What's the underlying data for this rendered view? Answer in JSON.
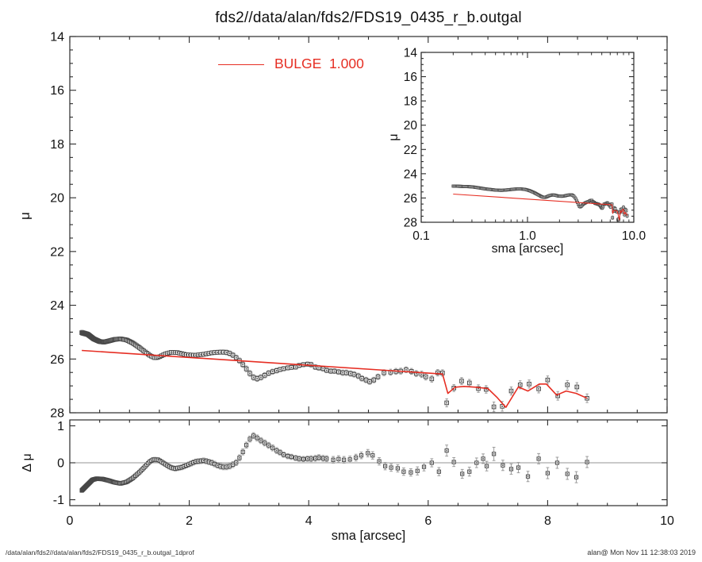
{
  "title": "fds2//data/alan/fds2/FDS19_0435_r_b.outgal",
  "legend": {
    "label": "BULGE  1.000",
    "color": "#e62e23"
  },
  "footer": {
    "left": "/data/alan/fds2//data/alan/fds2/FDS19_0435_r_b.outgal_1dprof",
    "right": "alan@  Mon Nov 11 12:38:03 2019"
  },
  "colors": {
    "model": "#e62e23",
    "marker": "#474747",
    "error_bar": "#9c9c9c",
    "frame": "#2b2b2b",
    "zero_line": "#949494",
    "text": "#111111",
    "background": "#ffffff"
  },
  "chart_data": [
    {
      "id": "main-profile",
      "type": "scatter",
      "xlabel": "sma [arcsec]",
      "ylabel": "μ",
      "xlim": [
        0,
        10
      ],
      "ylim": [
        28,
        14
      ],
      "x_major": 2,
      "x_minor": 0.5,
      "y_major": 2,
      "y_minor": 0.5,
      "grid": false,
      "legend_position": "top-inside",
      "model_label": "BULGE  1.000",
      "dense_profile": {
        "r_start": 0.2,
        "growth": 1.02,
        "n": 145,
        "mu_anchors": [
          [
            0.2,
            25.02
          ],
          [
            0.3,
            25.08
          ],
          [
            0.4,
            25.25
          ],
          [
            0.5,
            25.35
          ],
          [
            0.57,
            25.37
          ],
          [
            0.65,
            25.33
          ],
          [
            0.75,
            25.27
          ],
          [
            0.85,
            25.25
          ],
          [
            0.95,
            25.29
          ],
          [
            1.05,
            25.4
          ],
          [
            1.15,
            25.55
          ],
          [
            1.25,
            25.72
          ],
          [
            1.35,
            25.88
          ],
          [
            1.43,
            25.96
          ],
          [
            1.5,
            25.92
          ],
          [
            1.6,
            25.81
          ],
          [
            1.7,
            25.75
          ],
          [
            1.8,
            25.76
          ],
          [
            1.95,
            25.84
          ],
          [
            2.1,
            25.86
          ],
          [
            2.25,
            25.82
          ],
          [
            2.4,
            25.76
          ],
          [
            2.55,
            25.74
          ],
          [
            2.65,
            25.76
          ],
          [
            2.75,
            25.88
          ],
          [
            2.85,
            26.08
          ],
          [
            2.95,
            26.35
          ],
          [
            3.03,
            26.58
          ],
          [
            3.1,
            26.74
          ],
          [
            3.17,
            26.72
          ],
          [
            3.25,
            26.62
          ],
          [
            3.35,
            26.5
          ],
          [
            3.46,
            26.43
          ]
        ],
        "err_anchors": [
          [
            0.2,
            0.09
          ],
          [
            0.6,
            0.07
          ],
          [
            1.0,
            0.06
          ],
          [
            1.5,
            0.06
          ],
          [
            2.0,
            0.07
          ],
          [
            2.5,
            0.08
          ],
          [
            3.0,
            0.11
          ],
          [
            3.46,
            0.09
          ]
        ]
      },
      "sparse_points": [
        [
          3.52,
          26.39,
          0.08
        ],
        [
          3.58,
          26.36,
          0.08
        ],
        [
          3.65,
          26.33,
          0.08
        ],
        [
          3.71,
          26.31,
          0.08
        ],
        [
          3.78,
          26.3,
          0.08
        ],
        [
          3.84,
          26.24,
          0.08
        ],
        [
          3.91,
          26.21,
          0.08
        ],
        [
          3.98,
          26.19,
          0.08
        ],
        [
          4.04,
          26.21,
          0.09
        ],
        [
          4.11,
          26.3,
          0.09
        ],
        [
          4.17,
          26.33,
          0.09
        ],
        [
          4.24,
          26.36,
          0.09
        ],
        [
          4.3,
          26.42,
          0.09
        ],
        [
          4.37,
          26.45,
          0.09
        ],
        [
          4.43,
          26.45,
          0.09
        ],
        [
          4.5,
          26.48,
          0.09
        ],
        [
          4.57,
          26.51,
          0.1
        ],
        [
          4.63,
          26.51,
          0.1
        ],
        [
          4.7,
          26.54,
          0.1
        ],
        [
          4.76,
          26.57,
          0.1
        ],
        [
          4.83,
          26.63,
          0.1
        ],
        [
          4.89,
          26.72,
          0.1
        ],
        [
          4.96,
          26.78,
          0.1
        ],
        [
          5.02,
          26.84,
          0.1
        ],
        [
          5.09,
          26.78,
          0.1
        ],
        [
          5.16,
          26.66,
          0.1
        ],
        [
          5.26,
          26.51,
          0.11
        ],
        [
          5.37,
          26.49,
          0.11
        ],
        [
          5.46,
          26.46,
          0.11
        ],
        [
          5.54,
          26.45,
          0.11
        ],
        [
          5.63,
          26.4,
          0.11
        ],
        [
          5.72,
          26.46,
          0.11
        ],
        [
          5.8,
          26.54,
          0.11
        ],
        [
          5.89,
          26.57,
          0.12
        ],
        [
          5.96,
          26.66,
          0.12
        ],
        [
          6.06,
          26.74,
          0.12
        ],
        [
          6.16,
          26.51,
          0.12
        ],
        [
          6.24,
          26.52,
          0.12
        ],
        [
          6.31,
          27.63,
          0.15
        ],
        [
          6.43,
          27.08,
          0.13
        ],
        [
          6.56,
          26.82,
          0.13
        ],
        [
          6.69,
          26.89,
          0.13
        ],
        [
          6.84,
          27.1,
          0.14
        ],
        [
          6.97,
          27.13,
          0.14
        ],
        [
          7.1,
          27.78,
          0.18
        ],
        [
          7.24,
          27.76,
          0.18
        ],
        [
          7.39,
          27.19,
          0.15
        ],
        [
          7.54,
          26.96,
          0.15
        ],
        [
          7.69,
          26.93,
          0.15
        ],
        [
          7.85,
          27.11,
          0.15
        ],
        [
          8.0,
          26.78,
          0.15
        ],
        [
          8.17,
          27.37,
          0.16
        ],
        [
          8.33,
          26.96,
          0.16
        ],
        [
          8.49,
          27.04,
          0.16
        ],
        [
          8.66,
          27.46,
          0.16
        ]
      ],
      "model_line": [
        [
          0.2,
          25.68
        ],
        [
          6.24,
          26.56
        ],
        [
          6.33,
          27.28
        ],
        [
          6.45,
          27.05
        ],
        [
          6.6,
          27.02
        ],
        [
          6.8,
          27.05
        ],
        [
          7.0,
          27.1
        ],
        [
          7.15,
          27.42
        ],
        [
          7.3,
          27.8
        ],
        [
          7.51,
          27.04
        ],
        [
          7.67,
          27.19
        ],
        [
          7.86,
          26.93
        ],
        [
          7.98,
          26.93
        ],
        [
          8.15,
          27.34
        ],
        [
          8.31,
          27.19
        ],
        [
          8.48,
          27.28
        ],
        [
          8.66,
          27.46
        ]
      ]
    },
    {
      "id": "inset-profile-log",
      "type": "scatter",
      "x_scale": "log",
      "xlabel": "sma [arcsec]",
      "ylabel": "μ",
      "xlim": [
        0.1,
        10
      ],
      "ylim": [
        28,
        14
      ],
      "x_major_labels": [
        [
          -1,
          "0.1"
        ],
        [
          0,
          "1.0"
        ],
        [
          1,
          "10.0"
        ]
      ],
      "y_major": 2,
      "y_minor": 0.5,
      "grid": false,
      "note": "same data series and model as main panel, log x-axis"
    },
    {
      "id": "residual",
      "type": "scatter",
      "xlabel": "sma [arcsec]",
      "ylabel": "Δ μ",
      "xlim": [
        0,
        10
      ],
      "ylim": [
        -1.16,
        1.16
      ],
      "x_major": 2,
      "x_minor": 0.5,
      "y_majors": [
        -1,
        0,
        1
      ],
      "zero_line": true,
      "grid": false,
      "dense_profile": {
        "r_start": 0.2,
        "growth": 1.02,
        "n": 145,
        "dmu_anchors": [
          [
            0.2,
            -0.75
          ],
          [
            0.28,
            -0.62
          ],
          [
            0.38,
            -0.46
          ],
          [
            0.45,
            -0.43
          ],
          [
            0.55,
            -0.44
          ],
          [
            0.65,
            -0.48
          ],
          [
            0.75,
            -0.53
          ],
          [
            0.85,
            -0.56
          ],
          [
            0.95,
            -0.52
          ],
          [
            1.05,
            -0.42
          ],
          [
            1.15,
            -0.28
          ],
          [
            1.25,
            -0.12
          ],
          [
            1.33,
            0.02
          ],
          [
            1.4,
            0.09
          ],
          [
            1.48,
            0.08
          ],
          [
            1.58,
            -0.02
          ],
          [
            1.68,
            -0.12
          ],
          [
            1.76,
            -0.16
          ],
          [
            1.88,
            -0.12
          ],
          [
            2.0,
            -0.04
          ],
          [
            2.1,
            0.03
          ],
          [
            2.25,
            0.06
          ],
          [
            2.38,
            0.0
          ],
          [
            2.5,
            -0.09
          ],
          [
            2.6,
            -0.12
          ],
          [
            2.7,
            -0.08
          ],
          [
            2.8,
            0.02
          ],
          [
            2.9,
            0.3
          ],
          [
            3.0,
            0.62
          ],
          [
            3.08,
            0.74
          ],
          [
            3.18,
            0.62
          ],
          [
            3.28,
            0.52
          ],
          [
            3.38,
            0.42
          ],
          [
            3.46,
            0.33
          ]
        ],
        "err_anchors": [
          [
            0.2,
            0.05
          ],
          [
            0.8,
            0.05
          ],
          [
            1.5,
            0.06
          ],
          [
            2.2,
            0.07
          ],
          [
            2.8,
            0.08
          ],
          [
            3.46,
            0.08
          ]
        ]
      },
      "sparse_points": [
        [
          3.52,
          0.28,
          0.07
        ],
        [
          3.58,
          0.22,
          0.07
        ],
        [
          3.65,
          0.18,
          0.07
        ],
        [
          3.71,
          0.16,
          0.07
        ],
        [
          3.78,
          0.13,
          0.07
        ],
        [
          3.84,
          0.11,
          0.07
        ],
        [
          3.91,
          0.1,
          0.07
        ],
        [
          3.98,
          0.11,
          0.07
        ],
        [
          4.04,
          0.11,
          0.08
        ],
        [
          4.11,
          0.12,
          0.08
        ],
        [
          4.17,
          0.14,
          0.08
        ],
        [
          4.24,
          0.12,
          0.08
        ],
        [
          4.3,
          0.11,
          0.08
        ],
        [
          4.41,
          0.08,
          0.09
        ],
        [
          4.5,
          0.1,
          0.09
        ],
        [
          4.59,
          0.08,
          0.09
        ],
        [
          4.69,
          0.09,
          0.09
        ],
        [
          4.79,
          0.14,
          0.09
        ],
        [
          4.88,
          0.2,
          0.09
        ],
        [
          4.99,
          0.26,
          0.1
        ],
        [
          5.07,
          0.2,
          0.1
        ],
        [
          5.18,
          0.04,
          0.1
        ],
        [
          5.28,
          -0.09,
          0.1
        ],
        [
          5.38,
          -0.13,
          0.1
        ],
        [
          5.49,
          -0.15,
          0.1
        ],
        [
          5.59,
          -0.24,
          0.1
        ],
        [
          5.71,
          -0.26,
          0.1
        ],
        [
          5.82,
          -0.22,
          0.11
        ],
        [
          5.93,
          -0.11,
          0.11
        ],
        [
          6.06,
          0.0,
          0.11
        ],
        [
          6.18,
          -0.24,
          0.11
        ],
        [
          6.31,
          0.33,
          0.15
        ],
        [
          6.43,
          0.02,
          0.12
        ],
        [
          6.57,
          -0.3,
          0.12
        ],
        [
          6.69,
          -0.24,
          0.12
        ],
        [
          6.81,
          0.0,
          0.13
        ],
        [
          6.92,
          0.11,
          0.13
        ],
        [
          6.98,
          -0.09,
          0.13
        ],
        [
          7.1,
          0.24,
          0.18
        ],
        [
          7.25,
          -0.07,
          0.14
        ],
        [
          7.39,
          -0.17,
          0.14
        ],
        [
          7.51,
          -0.13,
          0.14
        ],
        [
          7.67,
          -0.37,
          0.14
        ],
        [
          7.85,
          0.11,
          0.14
        ],
        [
          8.0,
          -0.28,
          0.15
        ],
        [
          8.16,
          0.0,
          0.15
        ],
        [
          8.33,
          -0.3,
          0.15
        ],
        [
          8.48,
          -0.39,
          0.15
        ],
        [
          8.66,
          0.02,
          0.15
        ]
      ]
    }
  ]
}
